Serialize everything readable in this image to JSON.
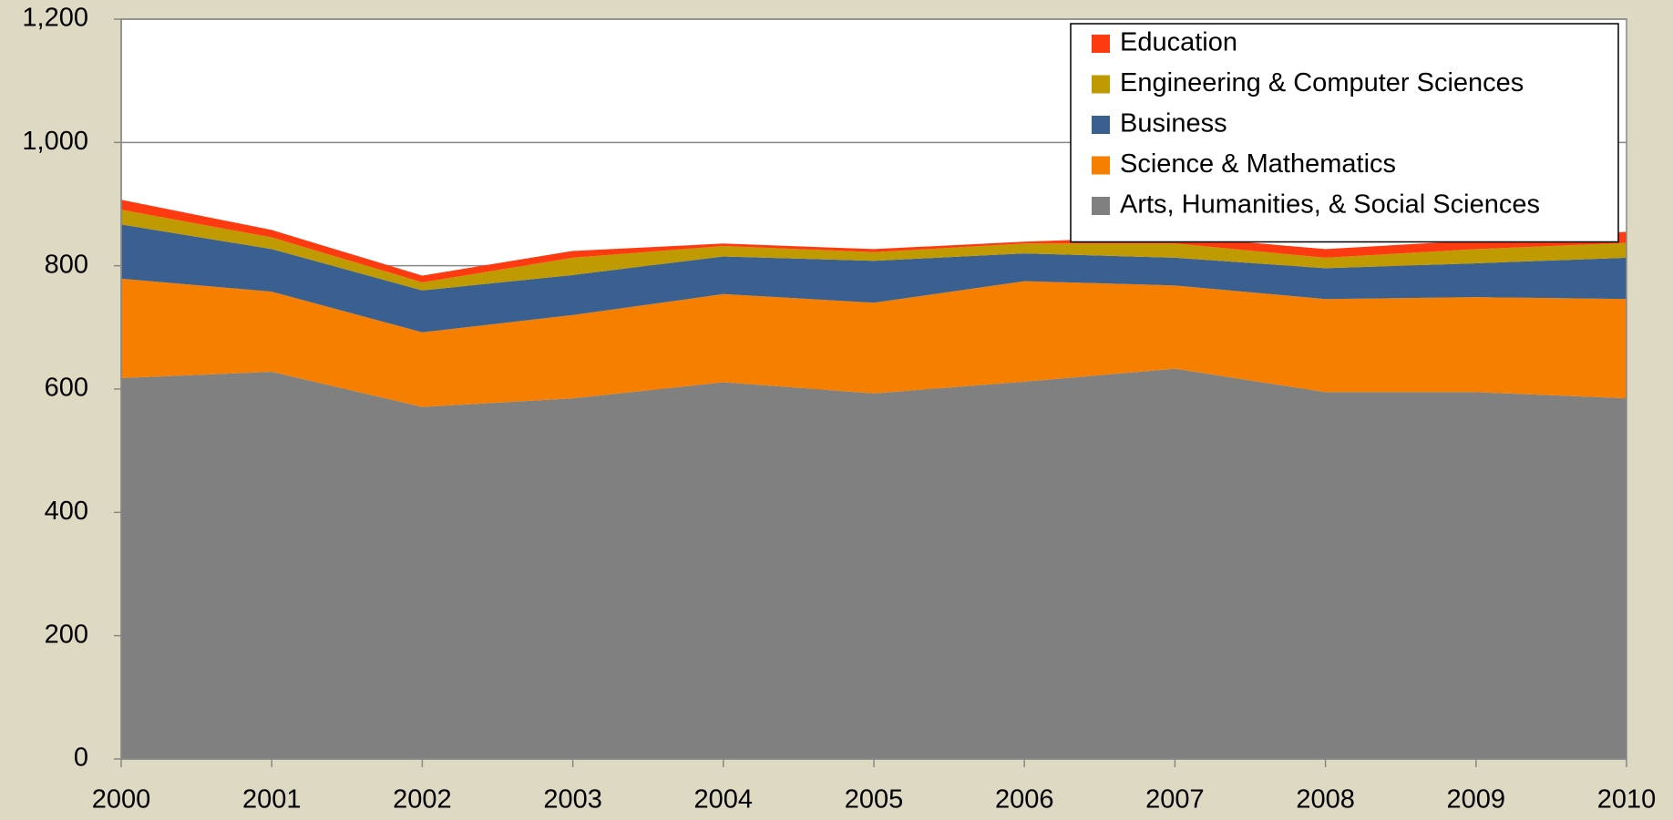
{
  "chart_data": {
    "type": "area",
    "stacked": true,
    "x": [
      2000,
      2001,
      2002,
      2003,
      2004,
      2005,
      2006,
      2007,
      2008,
      2009,
      2010
    ],
    "xlim": [
      2000,
      2010
    ],
    "xticks": [
      2000,
      2001,
      2002,
      2003,
      2004,
      2005,
      2006,
      2007,
      2008,
      2009,
      2010
    ],
    "ylim": [
      0,
      1200
    ],
    "yticks": [
      0,
      200,
      400,
      600,
      800,
      {
        "value": 1000,
        "label": "1,000"
      },
      {
        "value": 1200,
        "label": "1,200"
      }
    ],
    "grid": true,
    "legend": "top-right",
    "series": [
      {
        "name": "Arts, Humanities, & Social Sciences",
        "color": "#808080",
        "values": [
          618,
          628,
          571,
          585,
          611,
          593,
          612,
          633,
          595,
          595,
          585
        ]
      },
      {
        "name": "Science & Mathematics",
        "color": "#f77f00",
        "values": [
          161,
          130,
          121,
          135,
          143,
          147,
          163,
          135,
          151,
          154,
          161
        ]
      },
      {
        "name": "Business",
        "color": "#3a6091",
        "values": [
          88,
          69,
          68,
          65,
          61,
          68,
          45,
          45,
          50,
          55,
          67
        ]
      },
      {
        "name": "Engineering & Computer Sciences",
        "color": "#bf9a00",
        "values": [
          24,
          19,
          13,
          28,
          17,
          14,
          16,
          23,
          17,
          23,
          24
        ]
      },
      {
        "name": "Education",
        "color": "#fe3a10",
        "values": [
          16,
          12,
          11,
          11,
          4,
          5,
          3,
          12,
          14,
          14,
          18
        ]
      }
    ]
  }
}
